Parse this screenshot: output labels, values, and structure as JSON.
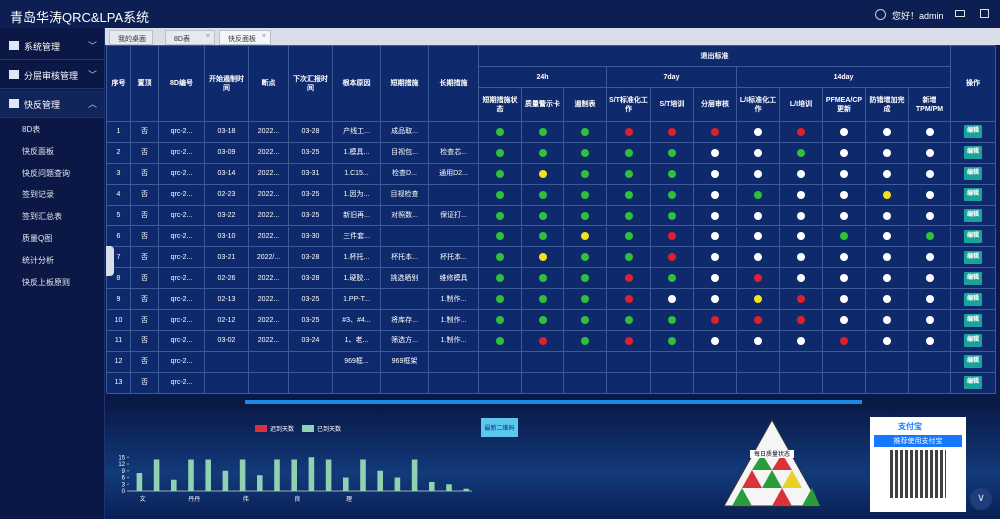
{
  "header": {
    "title": "青岛华涛QRC&LPA系统",
    "user": "您好！admin"
  },
  "sidebar": {
    "menus": [
      "系统管理",
      "分层审核管理",
      "快反管理"
    ],
    "items": [
      "8D表",
      "快反面板",
      "快反问题查询",
      "签到记录",
      "签到汇总表",
      "质量Q图",
      "统计分析",
      "快反上板原则"
    ]
  },
  "tabs": [
    "我的桌面",
    "8D表",
    "快反面板"
  ],
  "table": {
    "headers": {
      "seq": "序号",
      "top": "置顶",
      "code": "8D编号",
      "start": "开始遏制时间",
      "break": "断点",
      "next": "下次汇报时间",
      "root": "根本原因",
      "short": "短期措施",
      "long": "长期措施",
      "exit": "退出标准",
      "groups": [
        "24h",
        "7day",
        "14day"
      ],
      "checks": [
        "短期措施状态",
        "质量警示卡",
        "遏制表",
        "S/T标准化工作",
        "S/T培训",
        "分层审核",
        "L/I标准化工作",
        "L/I培训",
        "PFMEA/CP更新",
        "防错增加完成",
        "新增TPM/PM"
      ],
      "op": "操作"
    },
    "action": "编辑",
    "rows": [
      {
        "cells": [
          "1",
          "否",
          "qrc-2...",
          "03-18",
          "2022...",
          "03-28",
          "产线工...",
          "成品取...",
          null
        ],
        "status": [
          "green",
          "green",
          "green",
          "red",
          "red",
          "red",
          "white",
          "red",
          "white",
          "white",
          "white"
        ]
      },
      {
        "cells": [
          "2",
          "否",
          "qrc-2...",
          "03-09",
          "2022...",
          "03-25",
          "1.模具...",
          "目视包...",
          "检查芯..."
        ],
        "status": [
          "green",
          "green",
          "green",
          "green",
          "green",
          "white",
          "white",
          "green",
          "white",
          "white",
          "white"
        ]
      },
      {
        "cells": [
          "3",
          "否",
          "qrc-2...",
          "03-14",
          "2022...",
          "03-31",
          "1.C15...",
          "检查D...",
          "通用D2..."
        ],
        "status": [
          "green",
          "yellow",
          "green",
          "green",
          "green",
          "white",
          "white",
          "white",
          "white",
          "white",
          "white"
        ]
      },
      {
        "cells": [
          "4",
          "否",
          "qrc-2...",
          "02-23",
          "2022...",
          "03-25",
          "1.因为...",
          "目视检查",
          null
        ],
        "status": [
          "green",
          "green",
          "green",
          "green",
          "green",
          "white",
          "green",
          "white",
          "white",
          "yellow",
          "white"
        ]
      },
      {
        "cells": [
          "5",
          "否",
          "qrc-2...",
          "03-22",
          "2022...",
          "03-25",
          "新旧再...",
          "对照数...",
          "保证打..."
        ],
        "status": [
          "green",
          "green",
          "green",
          "green",
          "green",
          "white",
          "white",
          "white",
          "white",
          "white",
          "white"
        ]
      },
      {
        "cells": [
          "6",
          "否",
          "qrc-2...",
          "03-10",
          "2022...",
          "03-30",
          "三件套...",
          null,
          null
        ],
        "status": [
          "green",
          "green",
          "yellow",
          "green",
          "red",
          "white",
          "white",
          "white",
          "green",
          "white",
          "green"
        ]
      },
      {
        "cells": [
          "7",
          "否",
          "qrc-2...",
          "03-21",
          "2022/...",
          "03-28",
          "1.杯托...",
          "杯托本...",
          "杯托本..."
        ],
        "status": [
          "green",
          "yellow",
          "green",
          "green",
          "red",
          "white",
          "white",
          "white",
          "white",
          "white",
          "white"
        ]
      },
      {
        "cells": [
          "8",
          "否",
          "qrc-2...",
          "02-26",
          "2022...",
          "03-28",
          "1.硬胶...",
          "挑选晒别",
          "维修模具"
        ],
        "status": [
          "green",
          "green",
          "green",
          "red",
          "green",
          "white",
          "red",
          "white",
          "white",
          "white",
          "white"
        ]
      },
      {
        "cells": [
          "9",
          "否",
          "qrc-2...",
          "02-13",
          "2022...",
          "03-25",
          "1.PP-T...",
          null,
          "1.制作..."
        ],
        "status": [
          "green",
          "green",
          "green",
          "red",
          "white",
          "white",
          "yellow",
          "red",
          "white",
          "white",
          "white"
        ]
      },
      {
        "cells": [
          "10",
          "否",
          "qrc-2...",
          "02-12",
          "2022...",
          "03-25",
          "#3、#4...",
          "将库存...",
          "1.制作..."
        ],
        "status": [
          "green",
          "green",
          "green",
          "green",
          "green",
          "red",
          "red",
          "red",
          "white",
          "white",
          "white"
        ]
      },
      {
        "cells": [
          "11",
          "否",
          "qrc-2...",
          "03-02",
          "2022...",
          "03-24",
          "1、老...",
          "筛选方...",
          "1.制作..."
        ],
        "status": [
          "green",
          "red",
          "green",
          "red",
          "green",
          "white",
          "white",
          "white",
          "red",
          "white",
          "white"
        ]
      },
      {
        "cells": [
          "12",
          "否",
          "qrc-2...",
          null,
          null,
          null,
          "969框...",
          "969框架",
          null
        ],
        "status": [
          null,
          null,
          null,
          null,
          null,
          null,
          null,
          null,
          null,
          null,
          null
        ]
      },
      {
        "cells": [
          "13",
          "否",
          "qrc-2...",
          null,
          null,
          null,
          null,
          null,
          null
        ],
        "status": [
          null,
          null,
          null,
          null,
          null,
          null,
          null,
          null,
          null,
          null,
          null
        ]
      }
    ]
  },
  "button": "最新二维码",
  "chart_data": {
    "type": "bar",
    "categories": [
      "文",
      null,
      null,
      "丹丹",
      null,
      null,
      "伟",
      null,
      null,
      "良",
      null,
      null,
      "理",
      null,
      null,
      null,
      null,
      null,
      null,
      null
    ],
    "series": [
      {
        "name": "迟到天数",
        "color": "#d9323a",
        "values": [
          0,
          0,
          0,
          0,
          0,
          0,
          0,
          0,
          0,
          0,
          0,
          0,
          0,
          0,
          0,
          0,
          0,
          0,
          0,
          0
        ]
      },
      {
        "name": "已到天数",
        "color": "#8fd1b0",
        "values": [
          8,
          14,
          5,
          14,
          14,
          9,
          14,
          7,
          14,
          14,
          15,
          14,
          6,
          14,
          9,
          6,
          14,
          4,
          3,
          1
        ]
      }
    ],
    "ylim": [
      0,
      16
    ],
    "yticks": [
      0,
      3,
      6,
      9,
      12,
      15
    ]
  },
  "pyramid": {
    "label": "每日质量状态"
  },
  "ad": {
    "brand": "支付宝",
    "slogan": "推荐使用支付宝"
  }
}
